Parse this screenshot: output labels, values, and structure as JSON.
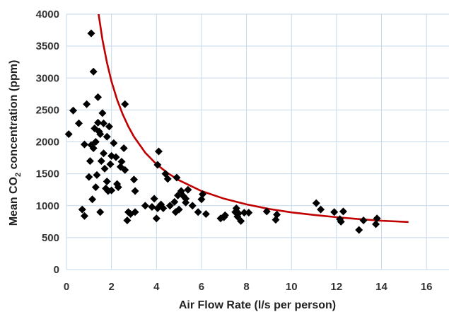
{
  "chart_data": {
    "type": "scatter",
    "title": "",
    "xlabel": "Air Flow Rate (l/s per person)",
    "ylabel": "Mean CO2 concentration (ppm)",
    "ylabel_parts": {
      "before": "Mean CO",
      "subscript": "2",
      "after": " concentration (ppm)"
    },
    "xlim": [
      0,
      17
    ],
    "ylim": [
      0,
      4000
    ],
    "x_ticks": [
      0,
      2,
      4,
      6,
      8,
      10,
      12,
      14,
      16
    ],
    "y_ticks": [
      0,
      500,
      1000,
      1500,
      2000,
      2500,
      3000,
      3500,
      4000
    ],
    "grid": true,
    "colors": {
      "points": "#000000",
      "curve": "#c00000",
      "grid": "#c5d9ea"
    },
    "series": [
      {
        "marker": "diamond",
        "points": [
          [
            0.1,
            2120
          ],
          [
            0.3,
            2490
          ],
          [
            0.55,
            2290
          ],
          [
            0.7,
            940
          ],
          [
            0.8,
            840
          ],
          [
            0.8,
            1960
          ],
          [
            0.9,
            2590
          ],
          [
            1.0,
            1450
          ],
          [
            1.05,
            1700
          ],
          [
            1.1,
            1950
          ],
          [
            1.1,
            3700
          ],
          [
            1.15,
            1100
          ],
          [
            1.2,
            3100
          ],
          [
            1.2,
            1900
          ],
          [
            1.25,
            2210
          ],
          [
            1.3,
            1290
          ],
          [
            1.3,
            2000
          ],
          [
            1.35,
            1480
          ],
          [
            1.4,
            2300
          ],
          [
            1.4,
            2700
          ],
          [
            1.45,
            2160
          ],
          [
            1.5,
            900
          ],
          [
            1.5,
            2120
          ],
          [
            1.55,
            1700
          ],
          [
            1.6,
            2450
          ],
          [
            1.65,
            2290
          ],
          [
            1.65,
            1820
          ],
          [
            1.7,
            1580
          ],
          [
            1.75,
            1270
          ],
          [
            1.8,
            1380
          ],
          [
            1.8,
            2080
          ],
          [
            1.85,
            1230
          ],
          [
            1.9,
            2240
          ],
          [
            1.95,
            1650
          ],
          [
            2.0,
            1780
          ],
          [
            2.0,
            1240
          ],
          [
            2.1,
            1980
          ],
          [
            2.2,
            1760
          ],
          [
            2.25,
            1340
          ],
          [
            2.3,
            1290
          ],
          [
            2.4,
            1610
          ],
          [
            2.45,
            1690
          ],
          [
            2.55,
            1900
          ],
          [
            2.6,
            1560
          ],
          [
            2.6,
            2590
          ],
          [
            2.7,
            770
          ],
          [
            2.75,
            900
          ],
          [
            2.85,
            870
          ],
          [
            3.0,
            1410
          ],
          [
            3.05,
            1230
          ],
          [
            3.05,
            900
          ],
          [
            3.5,
            1000
          ],
          [
            3.8,
            980
          ],
          [
            3.9,
            1110
          ],
          [
            4.0,
            800
          ],
          [
            4.05,
            960
          ],
          [
            4.05,
            1640
          ],
          [
            4.1,
            1850
          ],
          [
            4.2,
            1020
          ],
          [
            4.3,
            960
          ],
          [
            4.4,
            1500
          ],
          [
            4.5,
            1420
          ],
          [
            4.6,
            1000
          ],
          [
            4.8,
            1060
          ],
          [
            4.85,
            900
          ],
          [
            4.9,
            1440
          ],
          [
            4.95,
            1160
          ],
          [
            5.0,
            940
          ],
          [
            5.1,
            1230
          ],
          [
            5.2,
            1150
          ],
          [
            5.3,
            1110
          ],
          [
            5.3,
            1050
          ],
          [
            5.4,
            1250
          ],
          [
            5.6,
            1000
          ],
          [
            5.85,
            900
          ],
          [
            6.0,
            1100
          ],
          [
            6.05,
            1180
          ],
          [
            6.2,
            870
          ],
          [
            6.85,
            800
          ],
          [
            7.0,
            820
          ],
          [
            7.05,
            850
          ],
          [
            7.5,
            900
          ],
          [
            7.55,
            960
          ],
          [
            7.6,
            830
          ],
          [
            7.65,
            880
          ],
          [
            7.75,
            760
          ],
          [
            7.9,
            890
          ],
          [
            8.1,
            890
          ],
          [
            8.9,
            910
          ],
          [
            9.3,
            780
          ],
          [
            9.35,
            860
          ],
          [
            11.1,
            1040
          ],
          [
            11.3,
            940
          ],
          [
            11.9,
            900
          ],
          [
            12.15,
            790
          ],
          [
            12.2,
            750
          ],
          [
            12.3,
            910
          ],
          [
            13.0,
            620
          ],
          [
            13.2,
            770
          ],
          [
            13.75,
            710
          ],
          [
            13.8,
            800
          ]
        ]
      },
      {
        "marker": "line",
        "fit": {
          "x": [
            1.4,
            1.6,
            1.8,
            2.0,
            2.25,
            2.5,
            2.75,
            3.0,
            3.5,
            4.0,
            4.5,
            5.0,
            6.0,
            7.0,
            8.0,
            9.0,
            10.0,
            11.0,
            12.0,
            13.0,
            14.0,
            15.2
          ],
          "y": [
            4060,
            3600,
            3240,
            2950,
            2660,
            2430,
            2240,
            2080,
            1830,
            1650,
            1510,
            1400,
            1230,
            1110,
            1020,
            950,
            895,
            855,
            820,
            790,
            765,
            745
          ]
        }
      }
    ]
  }
}
